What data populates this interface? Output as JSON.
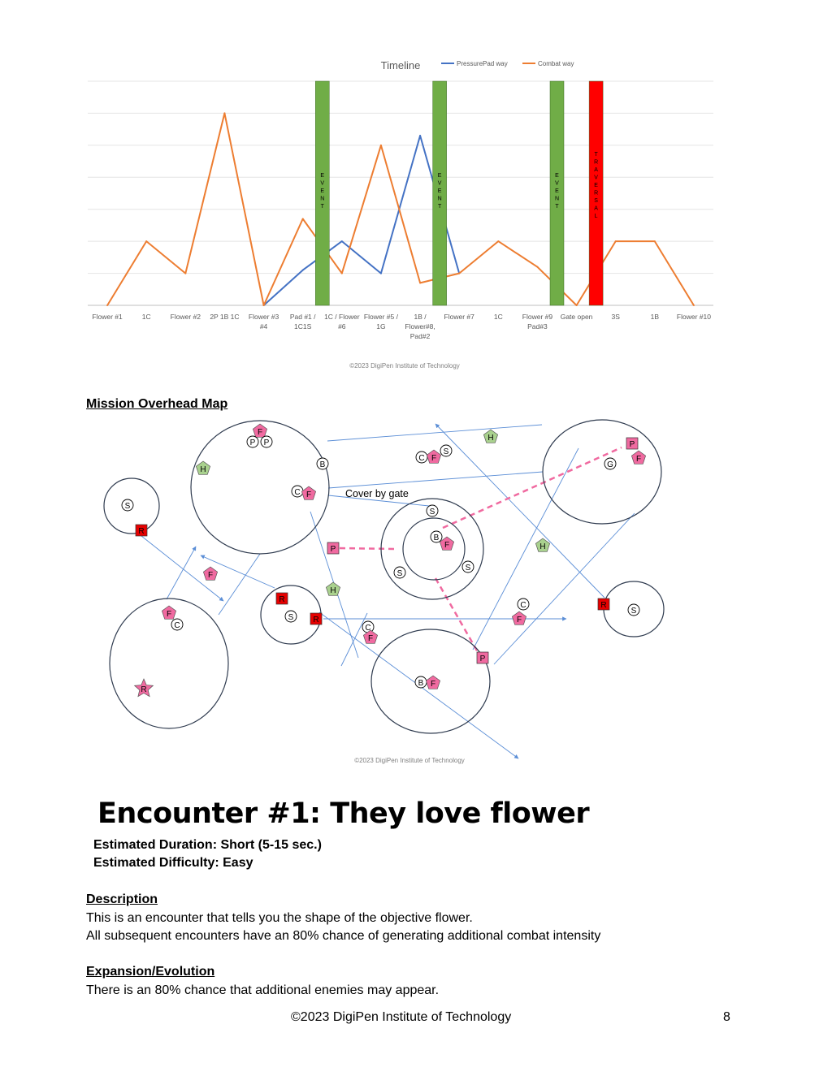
{
  "chart_data": {
    "type": "line",
    "title": "Timeline",
    "categories": [
      [
        "Flower #1"
      ],
      [
        "1C"
      ],
      [
        "Flower #2"
      ],
      [
        "2P 1B 1C"
      ],
      [
        "Flower #3",
        "#4"
      ],
      [
        "Pad #1 /",
        "1C1S"
      ],
      [
        "1C / Flower",
        "#6"
      ],
      [
        "Flower #5 /",
        "1G"
      ],
      [
        "1B /",
        "Flower#8,",
        "Pad#2"
      ],
      [
        "Flower #7"
      ],
      [
        "1C"
      ],
      [
        "Flower #9",
        "Pad#3"
      ],
      [
        "Gate open"
      ],
      [
        "3S"
      ],
      [
        "1B"
      ],
      [
        "Flower #10"
      ]
    ],
    "series": [
      {
        "name": "PressurePad way",
        "color": "#4472C4",
        "values": [
          null,
          null,
          null,
          null,
          0,
          1.1,
          2.0,
          1.0,
          5.3,
          1.0,
          null,
          null,
          null,
          null,
          null,
          null
        ]
      },
      {
        "name": "Combat way",
        "color": "#ED7D31",
        "values": [
          0,
          2.0,
          1.0,
          6.0,
          0,
          2.7,
          1.0,
          5.0,
          0.7,
          1.0,
          2.0,
          1.2,
          0,
          2.0,
          2.0,
          0
        ]
      }
    ],
    "ylim": [
      0,
      7
    ],
    "grid": "horizontal",
    "legend": "top-right",
    "event_bars": [
      {
        "after_index": 5,
        "color": "#70AD47",
        "letters": [
          "E",
          "V",
          "E",
          "N",
          "T"
        ]
      },
      {
        "after_index": 8,
        "color": "#70AD47",
        "letters": [
          "E",
          "V",
          "E",
          "N",
          "T"
        ]
      },
      {
        "after_index": 11,
        "color": "#70AD47",
        "letters": [
          "E",
          "V",
          "E",
          "N",
          "T"
        ]
      },
      {
        "after_index": 12,
        "color": "#FF0000",
        "letters": [
          "T",
          "R",
          "A",
          "V",
          "E",
          "R",
          "S",
          "A",
          "L"
        ]
      }
    ],
    "copyright": "©2023 DigiPen Institute of Technology"
  },
  "map": {
    "heading": "Mission Overhead Map",
    "note": "Cover by gate",
    "copyright": "©2023 DigiPen Institute of Technology",
    "colors": {
      "pink": "#F06AA0",
      "green": "#A9D18E",
      "red": "#E60000"
    }
  },
  "encounter": {
    "title": "Encounter #1: They love flower",
    "duration": "Estimated Duration: Short (5-15 sec.)",
    "difficulty": "Estimated Difficulty: Easy"
  },
  "description": {
    "heading": "Description",
    "line1": "This is an encounter that tells you the shape of the objective flower.",
    "line2": "All subsequent encounters have an 80% chance of generating additional combat intensity"
  },
  "expansion": {
    "heading": "Expansion/Evolution",
    "line1": "There is an 80% chance that additional enemies may appear."
  },
  "footer": {
    "copyright": "©2023 DigiPen Institute of Technology",
    "page_number": "8"
  }
}
